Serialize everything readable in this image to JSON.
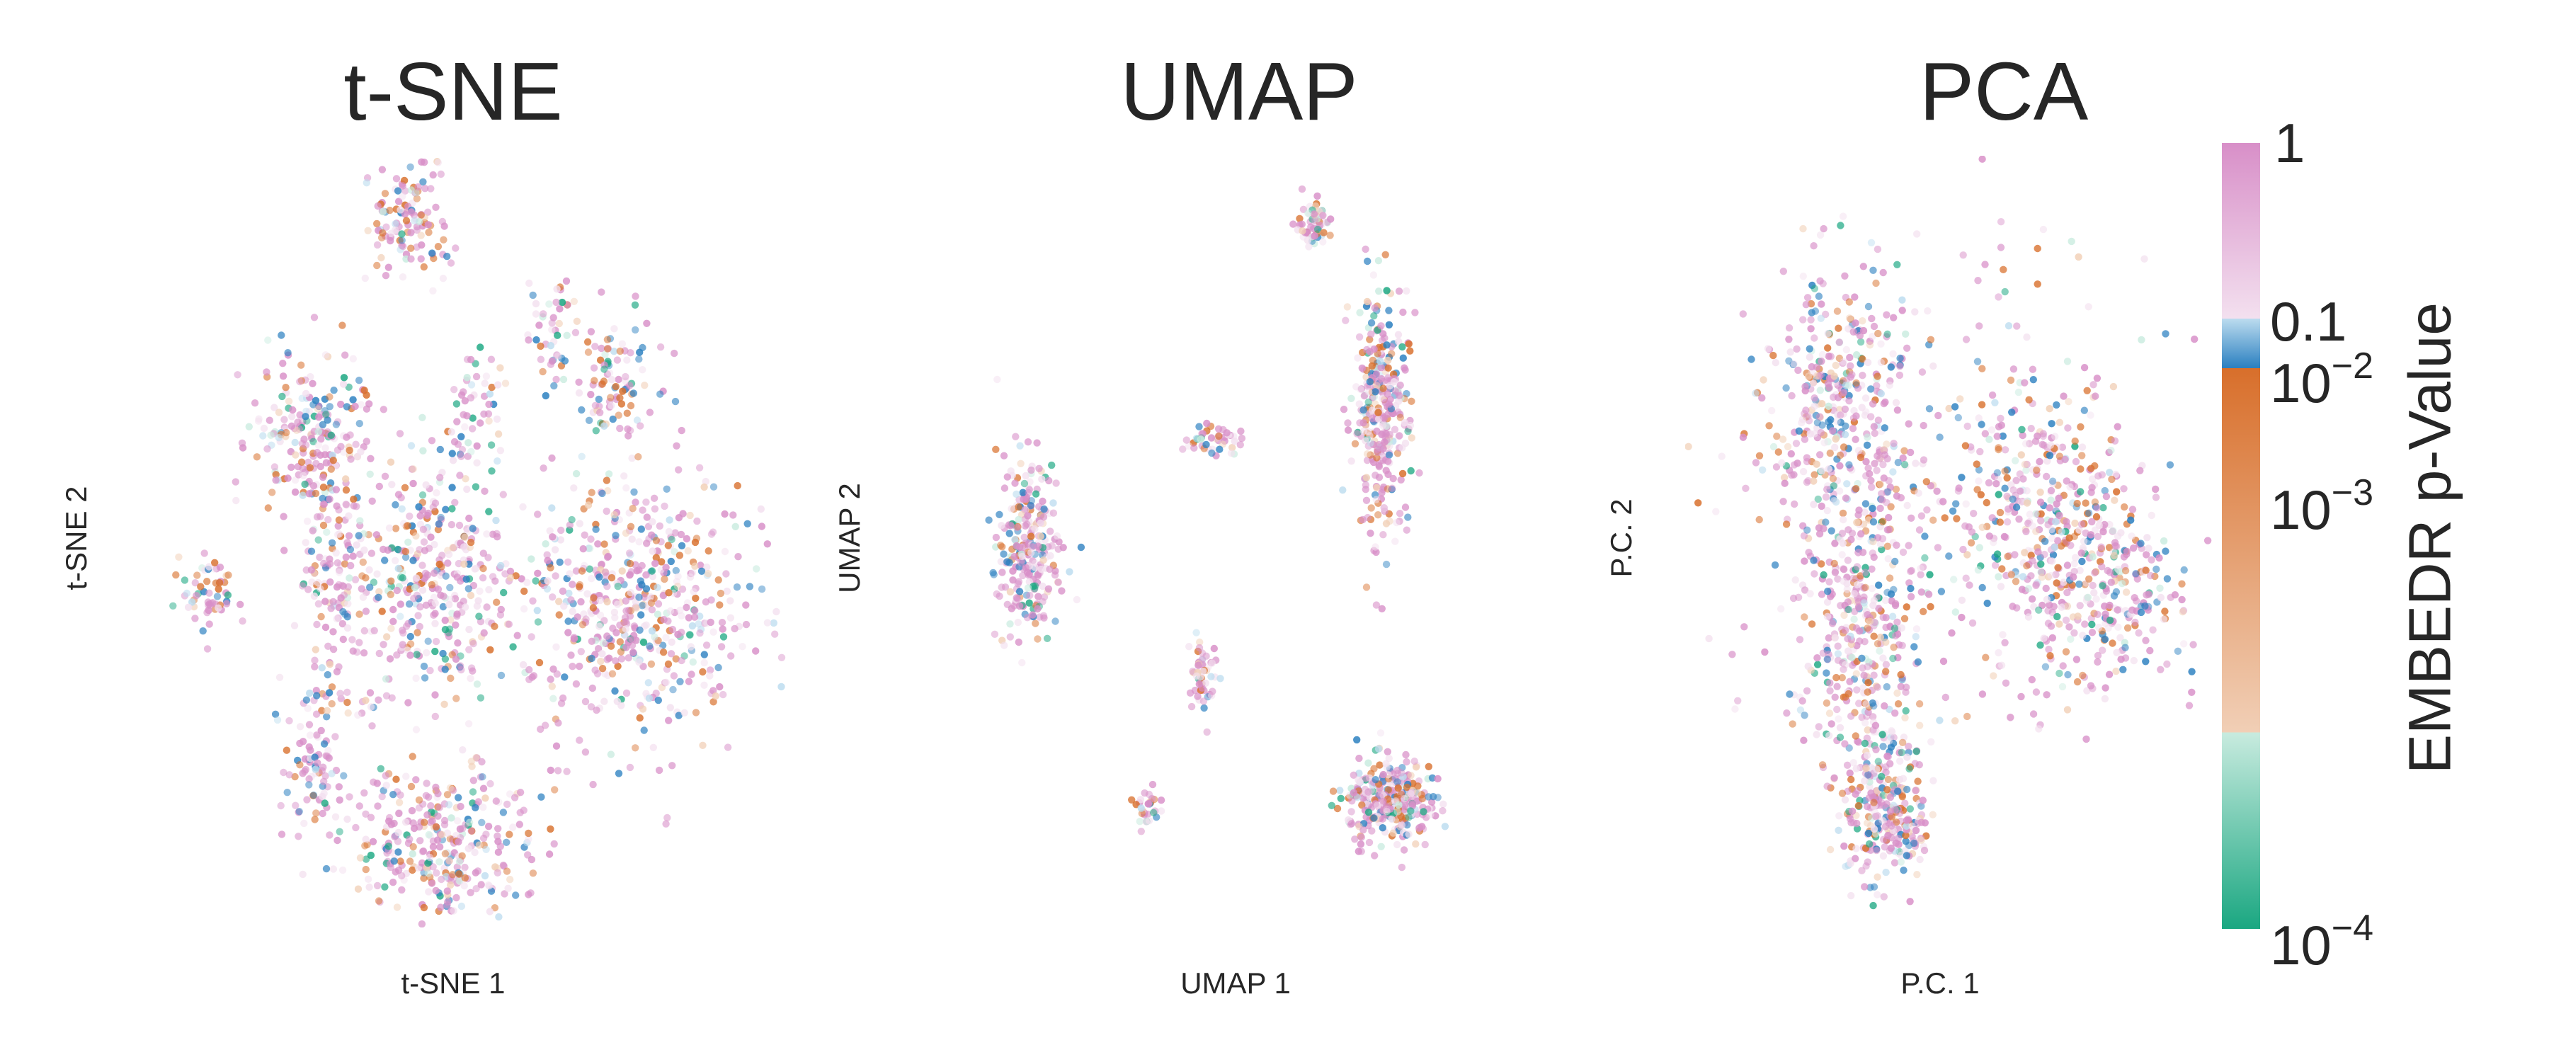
{
  "chart_data": [
    {
      "type": "scatter",
      "title": "t-SNE",
      "xlabel": "t-SNE 1",
      "ylabel": "t-SNE 2",
      "grid": false,
      "x_range": [
        -60,
        60
      ],
      "y_range": [
        -55,
        55
      ],
      "clusters": [
        {
          "x": -9,
          "y": 46,
          "sx": 4.0,
          "sy": 4.0,
          "n": 120
        },
        {
          "x": 18,
          "y": 30,
          "sx": 2.5,
          "sy": 3.5,
          "n": 45
        },
        {
          "x": 3,
          "y": 18,
          "sx": 3.0,
          "sy": 4.0,
          "n": 55
        },
        {
          "x": 28,
          "y": 22,
          "sx": 4.0,
          "sy": 5.0,
          "n": 95
        },
        {
          "x": -27,
          "y": 15,
          "sx": 5.0,
          "sy": 5.5,
          "n": 180
        },
        {
          "x": -22,
          "y": -2,
          "sx": 3.5,
          "sy": 12.0,
          "n": 190
        },
        {
          "x": -5,
          "y": -6,
          "sx": 7.0,
          "sy": 9.0,
          "n": 360
        },
        {
          "x": 32,
          "y": -9,
          "sx": 10.0,
          "sy": 10.0,
          "n": 560
        },
        {
          "x": -45,
          "y": -7,
          "sx": 2.5,
          "sy": 3.0,
          "n": 60
        },
        {
          "x": -27,
          "y": -32,
          "sx": 2.5,
          "sy": 5.5,
          "n": 85
        },
        {
          "x": -2,
          "y": -43,
          "sx": 8.0,
          "sy": 5.5,
          "n": 330
        }
      ]
    },
    {
      "type": "scatter",
      "title": "UMAP",
      "xlabel": "UMAP 1",
      "ylabel": "UMAP 2",
      "grid": false,
      "x_range": [
        -12,
        12
      ],
      "y_range": [
        -12,
        12
      ],
      "clusters": [
        {
          "x": 2.8,
          "y": 9.9,
          "sx": 0.3,
          "sy": 0.35,
          "n": 70
        },
        {
          "x": 5.3,
          "y": 4.0,
          "sx": 0.5,
          "sy": 1.8,
          "n": 340
        },
        {
          "x": -0.8,
          "y": 3.2,
          "sx": 0.6,
          "sy": 0.3,
          "n": 45
        },
        {
          "x": -7.6,
          "y": -0.3,
          "sx": 0.55,
          "sy": 1.5,
          "n": 270
        },
        {
          "x": -1.2,
          "y": -4.1,
          "sx": 0.25,
          "sy": 0.6,
          "n": 55
        },
        {
          "x": -3.2,
          "y": -8.3,
          "sx": 0.2,
          "sy": 0.3,
          "n": 30
        },
        {
          "x": 5.6,
          "y": -8.1,
          "sx": 0.75,
          "sy": 0.65,
          "n": 330
        }
      ]
    },
    {
      "type": "scatter",
      "title": "PCA",
      "xlabel": "P.C. 1",
      "ylabel": "P.C. 2",
      "grid": false,
      "x_range": [
        -10,
        10
      ],
      "y_range": [
        -10,
        10
      ],
      "clusters": [
        {
          "x": -4.5,
          "y": 3.5,
          "sx": 1.2,
          "sy": 1.8,
          "n": 320
        },
        {
          "x": -3.5,
          "y": -2.5,
          "sx": 1.0,
          "sy": 2.2,
          "n": 380
        },
        {
          "x": -2.7,
          "y": -7.0,
          "sx": 0.8,
          "sy": 0.9,
          "n": 260
        },
        {
          "x": 2.8,
          "y": 0.8,
          "sx": 1.5,
          "sy": 1.6,
          "n": 230
        },
        {
          "x": 5.0,
          "y": -1.0,
          "sx": 1.4,
          "sy": 1.4,
          "n": 300
        },
        {
          "x": -1.0,
          "y": 1.0,
          "sx": 4.0,
          "sy": 3.8,
          "n": 320
        }
      ]
    }
  ],
  "colorbar": {
    "label": "EMBEDR p-Value",
    "scale": "log",
    "range": [
      0.0001,
      1
    ],
    "ticks": [
      {
        "value": 1,
        "base": "1",
        "exp": ""
      },
      {
        "value": 0.1,
        "base": "0.1",
        "exp": ""
      },
      {
        "value": 0.01,
        "base": "10",
        "exp": "−2"
      },
      {
        "value": 0.001,
        "base": "10",
        "exp": "−3"
      },
      {
        "value": 0.0001,
        "base": "10",
        "exp": "−4"
      }
    ],
    "colors": {
      "pink": "#d88fc8",
      "pink_light": "#f3e0ef",
      "blue": "#2a7fc0",
      "blue_light": "#bcdcef",
      "orange": "#d86f2b",
      "orange_light": "#f1cfb6",
      "green_light": "#c8ebdf",
      "green": "#1aa781"
    }
  }
}
